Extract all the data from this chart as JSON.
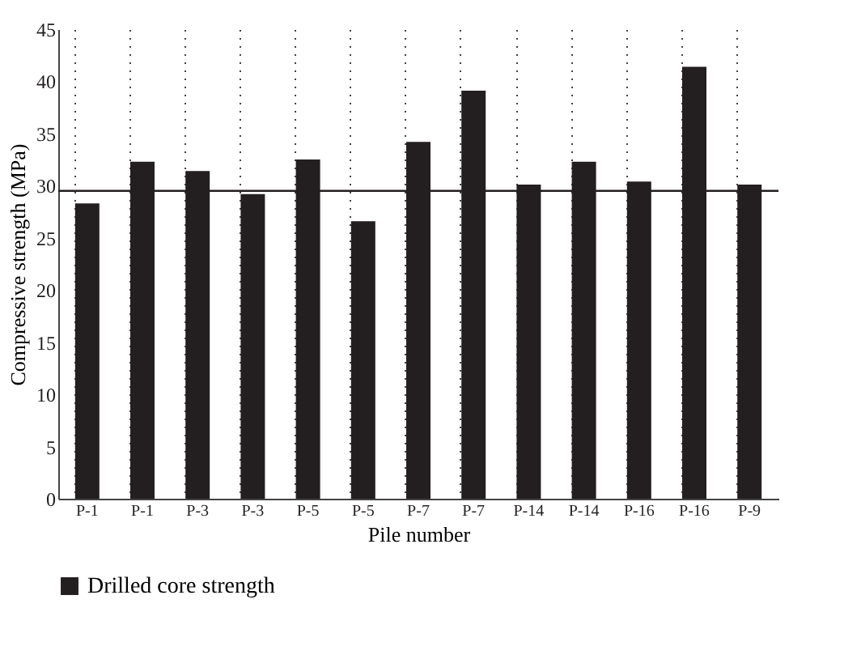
{
  "chart_data": {
    "type": "bar",
    "xlabel": "Pile number",
    "ylabel": "Compressive strength (MPa)",
    "categories": [
      "P-1",
      "P-1",
      "P-3",
      "P-3",
      "P-5",
      "P-5",
      "P-7",
      "P-7",
      "P-14",
      "P-14",
      "P-16",
      "P-16",
      "P-9"
    ],
    "series": [
      {
        "name": "Drilled core strength",
        "color": "#231f20",
        "values": [
          28.3,
          32.3,
          31.4,
          29.2,
          32.5,
          26.6,
          34.2,
          39.1,
          30.1,
          32.3,
          30.4,
          41.4,
          30.1
        ]
      }
    ],
    "ylim": [
      0,
      45
    ],
    "yticks": [
      0,
      5,
      10,
      15,
      20,
      25,
      30,
      35,
      40,
      45
    ],
    "ref_lines": [
      {
        "axis": "y",
        "value": 29.5,
        "color": "#231f20"
      }
    ],
    "grid": "x",
    "legend": "bottom"
  }
}
